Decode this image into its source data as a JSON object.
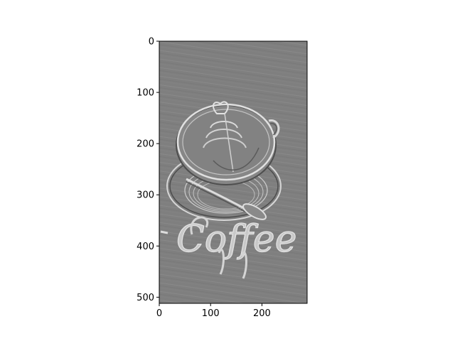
{
  "chart_data": {
    "type": "heatmap",
    "title": "",
    "xlabel": "",
    "ylabel": "",
    "image_content": "Grayscale edge-filtered (emboss/high-pass) image of a latte cup with leaf latte art on a saucer with a spoon, on a wooden table, with cursive lettering below",
    "image_lettering": "Coffee",
    "colormap": "gray",
    "xlim": [
      0,
      288
    ],
    "ylim": [
      512,
      0
    ],
    "x_ticks": [
      0,
      100,
      200
    ],
    "y_ticks": [
      0,
      100,
      200,
      300,
      400,
      500
    ],
    "x_tick_labels": [
      "0",
      "100",
      "200"
    ],
    "y_tick_labels": [
      "0",
      "100",
      "200",
      "300",
      "400",
      "500"
    ],
    "grid": false,
    "colors": {
      "background_gray": "#808080",
      "edge_light": "#d8d8d8",
      "edge_dark": "#4a4a4a",
      "axes_frame": "#000000"
    }
  }
}
